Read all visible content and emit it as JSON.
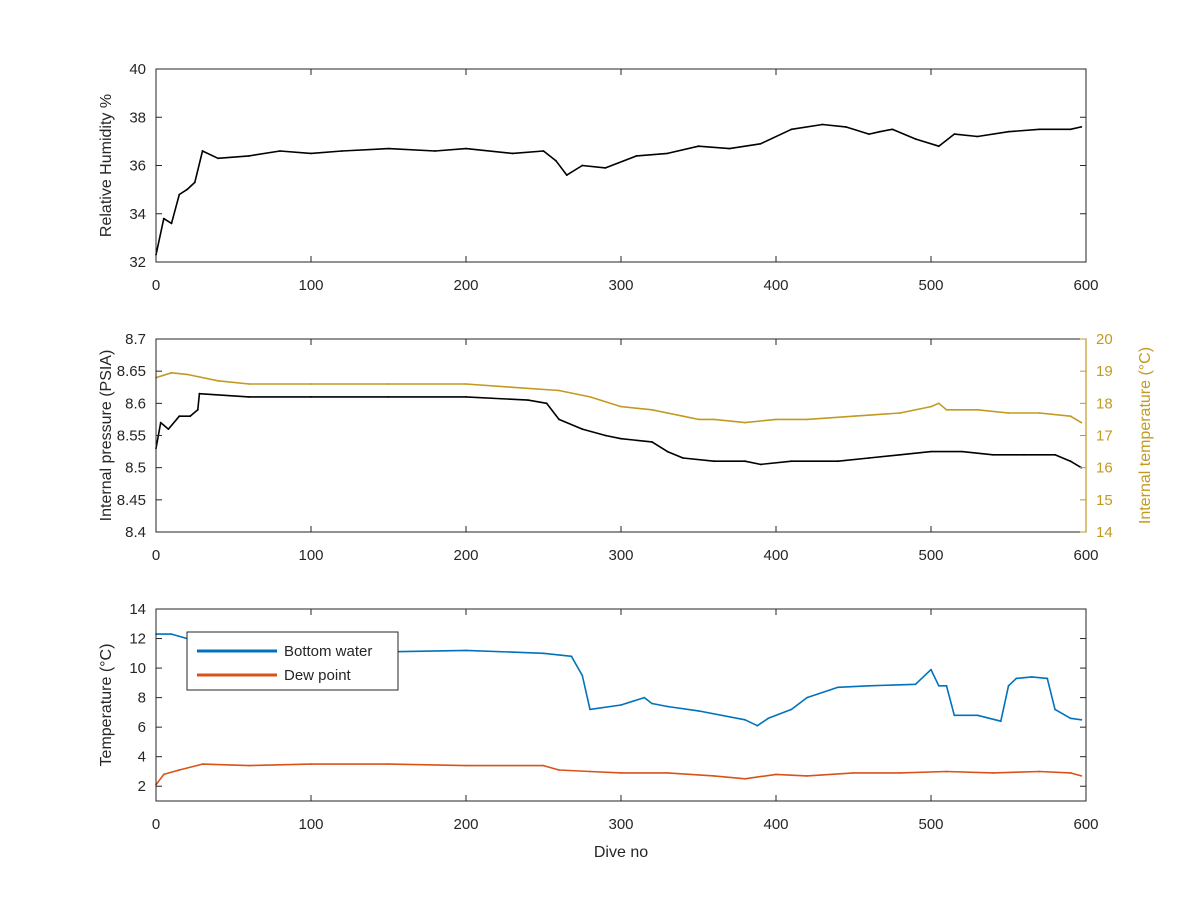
{
  "chart_data": [
    {
      "type": "line",
      "x_ticks": [
        0,
        100,
        200,
        300,
        400,
        500,
        600
      ],
      "xlim": [
        0,
        600
      ],
      "ylim": [
        32,
        40
      ],
      "y_ticks": [
        32,
        34,
        36,
        38,
        40
      ],
      "ylabel": "Relative Humidity %",
      "series": [
        {
          "color": "#000000",
          "x": [
            0,
            5,
            10,
            15,
            20,
            25,
            30,
            40,
            60,
            80,
            100,
            120,
            150,
            180,
            200,
            230,
            250,
            258,
            265,
            275,
            290,
            310,
            330,
            350,
            370,
            390,
            410,
            430,
            445,
            460,
            467,
            475,
            490,
            505,
            515,
            530,
            550,
            570,
            590,
            597
          ],
          "y": [
            32.3,
            33.8,
            33.6,
            34.8,
            35.0,
            35.3,
            36.6,
            36.3,
            36.4,
            36.6,
            36.5,
            36.6,
            36.7,
            36.6,
            36.7,
            36.5,
            36.6,
            36.2,
            35.6,
            36.0,
            35.9,
            36.4,
            36.5,
            36.8,
            36.7,
            36.9,
            37.5,
            37.7,
            37.6,
            37.3,
            37.4,
            37.5,
            37.1,
            36.8,
            37.3,
            37.2,
            37.4,
            37.5,
            37.5,
            37.6
          ]
        }
      ]
    },
    {
      "type": "line",
      "x_ticks": [
        0,
        100,
        200,
        300,
        400,
        500,
        600
      ],
      "xlim": [
        0,
        600
      ],
      "ylim": [
        8.4,
        8.7
      ],
      "y_ticks": [
        8.4,
        8.45,
        8.5,
        8.55,
        8.6,
        8.65,
        8.7
      ],
      "ylabel": "Internal pressure (PSIA)",
      "y2lim": [
        14,
        20
      ],
      "y2_ticks": [
        14,
        15,
        16,
        17,
        18,
        19,
        20
      ],
      "y2label": "Internal temperature (°C)",
      "series": [
        {
          "axis": "left",
          "color": "#000000",
          "x": [
            0,
            3,
            8,
            15,
            22,
            27,
            28,
            60,
            100,
            150,
            200,
            240,
            252,
            260,
            275,
            290,
            300,
            320,
            330,
            340,
            360,
            380,
            390,
            410,
            440,
            460,
            480,
            500,
            520,
            540,
            560,
            580,
            590,
            597
          ],
          "y": [
            8.53,
            8.57,
            8.56,
            8.58,
            8.58,
            8.59,
            8.615,
            8.61,
            8.61,
            8.61,
            8.61,
            8.605,
            8.6,
            8.575,
            8.56,
            8.55,
            8.545,
            8.54,
            8.525,
            8.515,
            8.51,
            8.51,
            8.505,
            8.51,
            8.51,
            8.515,
            8.52,
            8.525,
            8.525,
            8.52,
            8.52,
            8.52,
            8.51,
            8.5
          ]
        },
        {
          "axis": "right",
          "color": "#C39A1F",
          "x": [
            0,
            10,
            20,
            40,
            60,
            100,
            150,
            200,
            230,
            260,
            280,
            300,
            320,
            330,
            340,
            350,
            360,
            380,
            400,
            420,
            450,
            480,
            500,
            505,
            510,
            530,
            550,
            570,
            590,
            597
          ],
          "y": [
            18.8,
            18.95,
            18.9,
            18.7,
            18.6,
            18.6,
            18.6,
            18.6,
            18.5,
            18.4,
            18.2,
            17.9,
            17.8,
            17.7,
            17.6,
            17.5,
            17.5,
            17.4,
            17.5,
            17.5,
            17.6,
            17.7,
            17.9,
            18.0,
            17.8,
            17.8,
            17.7,
            17.7,
            17.6,
            17.4
          ]
        }
      ]
    },
    {
      "type": "line",
      "x_ticks": [
        0,
        100,
        200,
        300,
        400,
        500,
        600
      ],
      "xlim": [
        0,
        600
      ],
      "ylim": [
        1,
        14
      ],
      "y_ticks": [
        2,
        4,
        6,
        8,
        10,
        12,
        14
      ],
      "xlabel": "Dive no",
      "ylabel": "Temperature (°C)",
      "legend": "top-left",
      "series": [
        {
          "name": "Bottom water",
          "color": "#0072BD",
          "x": [
            0,
            10,
            30,
            50,
            100,
            150,
            200,
            250,
            268,
            275,
            280,
            300,
            315,
            320,
            330,
            350,
            380,
            388,
            395,
            410,
            420,
            440,
            460,
            490,
            500,
            505,
            510,
            515,
            530,
            545,
            550,
            555,
            565,
            575,
            580,
            590,
            597
          ],
          "y": [
            12.3,
            12.3,
            11.7,
            11.3,
            11.2,
            11.1,
            11.2,
            11.0,
            10.8,
            9.5,
            7.2,
            7.5,
            8.0,
            7.6,
            7.4,
            7.1,
            6.5,
            6.1,
            6.6,
            7.2,
            8.0,
            8.7,
            8.8,
            8.9,
            9.9,
            8.8,
            8.8,
            6.8,
            6.8,
            6.4,
            8.8,
            9.3,
            9.4,
            9.3,
            7.2,
            6.6,
            6.5
          ]
        },
        {
          "name": "Dew point",
          "color": "#D95319",
          "x": [
            0,
            5,
            15,
            30,
            60,
            100,
            150,
            200,
            250,
            260,
            280,
            300,
            330,
            360,
            380,
            400,
            420,
            450,
            480,
            510,
            540,
            570,
            590,
            597
          ],
          "y": [
            2.1,
            2.8,
            3.1,
            3.5,
            3.4,
            3.5,
            3.5,
            3.4,
            3.4,
            3.1,
            3.0,
            2.9,
            2.9,
            2.7,
            2.5,
            2.8,
            2.7,
            2.9,
            2.9,
            3.0,
            2.9,
            3.0,
            2.9,
            2.7
          ]
        }
      ]
    }
  ]
}
